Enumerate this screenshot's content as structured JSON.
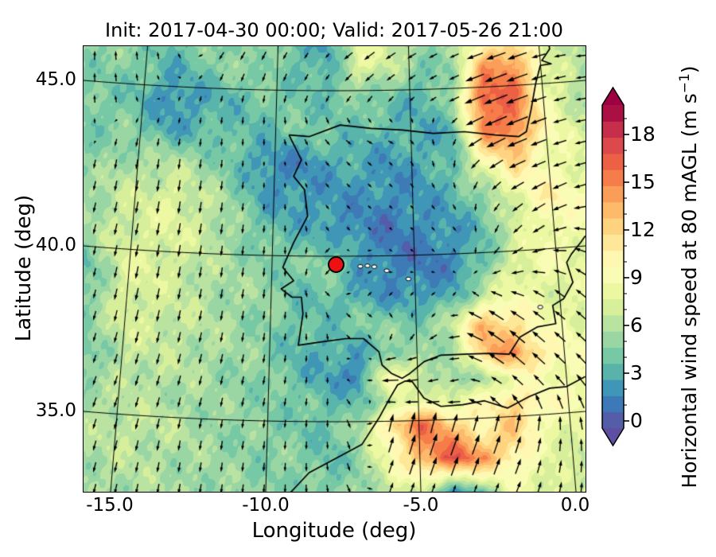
{
  "figure": {
    "title": "Init: 2017-04-30 00:00; Valid: 2017-05-26 21:00",
    "background": "#ffffff"
  },
  "axes": {
    "xlabel": "Longitude (deg)",
    "ylabel": "Latitude (deg)",
    "x_ticks": [
      {
        "value": -15,
        "label": "-15.0"
      },
      {
        "value": -10,
        "label": "-10.0"
      },
      {
        "value": -5,
        "label": "-5.0"
      },
      {
        "value": 0,
        "label": "0.0"
      }
    ],
    "y_ticks": [
      {
        "value": 45,
        "label": "45.0"
      },
      {
        "value": 40,
        "label": "40.0"
      },
      {
        "value": 35,
        "label": "35.0"
      }
    ]
  },
  "colorbar": {
    "label_main": "Horizontal wind speed at 80 mAGL (m s",
    "label_sup": "−1",
    "label_close": ")",
    "range": [
      0,
      20
    ],
    "bin_size": 1,
    "extend": "both",
    "ticks": [
      {
        "value": 0,
        "label": "0"
      },
      {
        "value": 3,
        "label": "3"
      },
      {
        "value": 6,
        "label": "6"
      },
      {
        "value": 9,
        "label": "9"
      },
      {
        "value": 12,
        "label": "12"
      },
      {
        "value": 15,
        "label": "15"
      },
      {
        "value": 18,
        "label": "18"
      }
    ],
    "colormap": "Spectral_r",
    "colormap_anchors": [
      "#5e4fa2",
      "#3288bd",
      "#66c2a5",
      "#abdda4",
      "#e6f598",
      "#ffffbf",
      "#fee08b",
      "#fdae61",
      "#f46d43",
      "#d53e4f",
      "#9e0142"
    ]
  },
  "chart_data": {
    "type": "heatmap",
    "subtype": "filled-contour wind speed map with quiver arrows",
    "region": "Iberian Peninsula and surrounding Atlantic / Bay of Biscay / NW Africa",
    "lon_range": [
      -15.9,
      0.3
    ],
    "lat_range": [
      32.6,
      46.0
    ],
    "units": "m s-1",
    "grid": {
      "lons": [
        -16,
        -14.5,
        -13,
        -11.5,
        -10,
        -9,
        -8,
        -7,
        -6,
        -5,
        -4,
        -3,
        -2,
        -1,
        0.3
      ],
      "lats": [
        32.6,
        33.6,
        34.6,
        35.3,
        36,
        36.8,
        37.6,
        38.5,
        39.5,
        40.5,
        41.5,
        42.5,
        43.5,
        44.5,
        45.5,
        46.2
      ],
      "speed_ms": [
        [
          6,
          6,
          6,
          5.5,
          5,
          5,
          4.5,
          5.5,
          7,
          7,
          3,
          4,
          9,
          8,
          7
        ],
        [
          6,
          6.5,
          6,
          5.5,
          5,
          5,
          4,
          5,
          9,
          14,
          17,
          15,
          11,
          8,
          7
        ],
        [
          6,
          7,
          6.5,
          5.5,
          5,
          4.5,
          4,
          6,
          12,
          16,
          13,
          10,
          13,
          9,
          8
        ],
        [
          6,
          6.5,
          6,
          5.5,
          5,
          4.5,
          4,
          4,
          6,
          9,
          8,
          10,
          12,
          10,
          9
        ],
        [
          5,
          6.5,
          6.5,
          5.5,
          5,
          4,
          3,
          1.5,
          11,
          7,
          5,
          6,
          9,
          9,
          9
        ],
        [
          3.5,
          7,
          6.5,
          6,
          5,
          3.5,
          3,
          3,
          5,
          5,
          6,
          13,
          15,
          11,
          9
        ],
        [
          5,
          7.5,
          7,
          6,
          5,
          4,
          4,
          5,
          5,
          5,
          7,
          14,
          12,
          9,
          8
        ],
        [
          4,
          8,
          7,
          6,
          5.5,
          4,
          4,
          3,
          2.5,
          2.5,
          3,
          7,
          9,
          8,
          8
        ],
        [
          3.5,
          8,
          7.5,
          6,
          5,
          4.5,
          5.5,
          3,
          1.5,
          1.5,
          2,
          4,
          8,
          9,
          8
        ],
        [
          5.5,
          7.5,
          8,
          6.5,
          4,
          3.5,
          2.5,
          2,
          1.5,
          2,
          2.5,
          4,
          7,
          9,
          9
        ],
        [
          5.5,
          7,
          8,
          6,
          3,
          2.5,
          2.5,
          2.5,
          2,
          2.5,
          3.5,
          5,
          8,
          11,
          9
        ],
        [
          5,
          6,
          6.5,
          5,
          2,
          2,
          3,
          3,
          2.5,
          3,
          4,
          9,
          12,
          9,
          8
        ],
        [
          4.5,
          5,
          3,
          4,
          4,
          4.5,
          4.5,
          4,
          3.5,
          3.5,
          3,
          15,
          16,
          10,
          7
        ],
        [
          4.5,
          4.5,
          2,
          3.5,
          4.5,
          4.5,
          4,
          5,
          4.5,
          3,
          6,
          17,
          16,
          9,
          6
        ],
        [
          5,
          5,
          3.5,
          5,
          5.5,
          4,
          3,
          8.5,
          7,
          5,
          5,
          14,
          15,
          8,
          6
        ],
        [
          5.5,
          5,
          4.5,
          5,
          5.5,
          3.5,
          3,
          8,
          7.5,
          6,
          5.5,
          10,
          12,
          7,
          6.5
        ]
      ],
      "arrow_dir_deg_math": [
        [
          255,
          258,
          260,
          262,
          265,
          270,
          280,
          300,
          70,
          70,
          72,
          70,
          68,
          75,
          85
        ],
        [
          255,
          257,
          260,
          262,
          265,
          268,
          275,
          290,
          72,
          72,
          70,
          70,
          70,
          78,
          90
        ],
        [
          252,
          255,
          258,
          260,
          263,
          265,
          270,
          300,
          75,
          75,
          72,
          72,
          75,
          85,
          100
        ],
        [
          250,
          253,
          256,
          258,
          260,
          262,
          268,
          320,
          180,
          185,
          190,
          150,
          130,
          110,
          115
        ],
        [
          250,
          252,
          255,
          258,
          260,
          262,
          270,
          20,
          182,
          190,
          195,
          160,
          140,
          135,
          130
        ],
        [
          252,
          254,
          256,
          258,
          262,
          265,
          275,
          30,
          200,
          200,
          190,
          150,
          140,
          138,
          135
        ],
        [
          254,
          256,
          258,
          260,
          263,
          268,
          280,
          310,
          290,
          250,
          200,
          148,
          142,
          140,
          138
        ],
        [
          255,
          257,
          259,
          261,
          264,
          270,
          320,
          45,
          50,
          45,
          40,
          150,
          160,
          145,
          140
        ],
        [
          256,
          258,
          260,
          262,
          265,
          272,
          210,
          40,
          330,
          315,
          300,
          250,
          210,
          180,
          150
        ],
        [
          256,
          258,
          260,
          262,
          266,
          274,
          305,
          315,
          315,
          315,
          310,
          270,
          225,
          210,
          170
        ],
        [
          257,
          259,
          261,
          263,
          268,
          278,
          310,
          315,
          315,
          310,
          300,
          250,
          215,
          210,
          195
        ],
        [
          258,
          260,
          262,
          264,
          270,
          285,
          310,
          320,
          315,
          300,
          270,
          220,
          205,
          202,
          195
        ],
        [
          88,
          255,
          260,
          265,
          272,
          290,
          310,
          330,
          340,
          300,
          250,
          205,
          202,
          200,
          190
        ],
        [
          90,
          100,
          250,
          255,
          260,
          250,
          240,
          230,
          225,
          215,
          205,
          202,
          200,
          198,
          188
        ],
        [
          88,
          95,
          110,
          240,
          245,
          240,
          230,
          220,
          215,
          210,
          205,
          200,
          200,
          195,
          185
        ],
        [
          85,
          90,
          100,
          230,
          240,
          235,
          225,
          215,
          212,
          208,
          205,
          200,
          198,
          192,
          183
        ]
      ]
    },
    "marker": {
      "lon": -7.75,
      "lat": 39.45,
      "fill": "#ee1111",
      "edge": "#000000"
    },
    "graticule": {
      "meridians": [
        -15,
        -10,
        -5,
        0
      ],
      "parallels": [
        35,
        40,
        45
      ]
    },
    "coastlines": {
      "north_coast_and_france": [
        [
          -9.25,
          43.35
        ],
        [
          -8.6,
          43.3
        ],
        [
          -7.6,
          43.65
        ],
        [
          -6.6,
          43.55
        ],
        [
          -5.6,
          43.5
        ],
        [
          -4.6,
          43.4
        ],
        [
          -3.6,
          43.45
        ],
        [
          -2.6,
          43.35
        ],
        [
          -1.85,
          43.3
        ],
        [
          -1.6,
          43.45
        ],
        [
          -1.45,
          44.1
        ],
        [
          -1.3,
          44.9
        ],
        [
          -1.15,
          45.45
        ],
        [
          -0.8,
          45.5
        ],
        [
          -1.1,
          45.6
        ],
        [
          -0.85,
          45.95
        ],
        [
          -0.9,
          46.25
        ]
      ],
      "west_south_east_coast": [
        [
          -9.25,
          43.35
        ],
        [
          -8.85,
          42.6
        ],
        [
          -9.1,
          42.1
        ],
        [
          -8.75,
          41.7
        ],
        [
          -8.65,
          40.9
        ],
        [
          -9.1,
          40.1
        ],
        [
          -9.45,
          39.35
        ],
        [
          -9.1,
          38.95
        ],
        [
          -9.5,
          38.7
        ],
        [
          -9.15,
          38.45
        ],
        [
          -8.85,
          38.45
        ],
        [
          -8.8,
          37.95
        ],
        [
          -8.95,
          37.0
        ],
        [
          -8.2,
          37.1
        ],
        [
          -7.4,
          37.2
        ],
        [
          -6.85,
          37.2
        ],
        [
          -6.35,
          36.8
        ],
        [
          -6.25,
          36.4
        ],
        [
          -5.95,
          36.15
        ],
        [
          -5.6,
          36.0
        ],
        [
          -5.35,
          36.15
        ],
        [
          -4.9,
          36.5
        ],
        [
          -4.35,
          36.7
        ],
        [
          -3.6,
          36.73
        ],
        [
          -2.8,
          36.75
        ],
        [
          -2.15,
          36.73
        ],
        [
          -1.8,
          37.25
        ],
        [
          -1.25,
          37.55
        ],
        [
          -0.65,
          37.65
        ],
        [
          -0.75,
          38.2
        ],
        [
          -0.4,
          38.4
        ],
        [
          -0.1,
          38.9
        ],
        [
          -0.3,
          39.5
        ],
        [
          -0.15,
          39.75
        ],
        [
          0.15,
          40.1
        ],
        [
          0.3,
          40.3
        ]
      ],
      "africa": [
        [
          -9.2,
          32.55
        ],
        [
          -8.6,
          33.15
        ],
        [
          -7.7,
          33.6
        ],
        [
          -6.9,
          34.0
        ],
        [
          -6.35,
          34.8
        ],
        [
          -6.0,
          35.4
        ],
        [
          -5.75,
          35.8
        ],
        [
          -5.5,
          35.92
        ],
        [
          -5.28,
          35.9
        ],
        [
          -4.9,
          35.4
        ],
        [
          -4.35,
          35.15
        ],
        [
          -3.65,
          35.2
        ],
        [
          -2.95,
          35.32
        ],
        [
          -2.2,
          35.1
        ],
        [
          -1.5,
          35.45
        ],
        [
          -0.85,
          35.7
        ],
        [
          -0.3,
          35.75
        ],
        [
          0.3,
          36.05
        ]
      ]
    },
    "lakes": [
      [
        -6.95,
        39.38
      ],
      [
        -6.72,
        39.4
      ],
      [
        -6.5,
        39.37
      ],
      [
        -6.1,
        39.25
      ],
      [
        -5.4,
        39.0
      ],
      [
        -1.15,
        38.15
      ]
    ]
  }
}
